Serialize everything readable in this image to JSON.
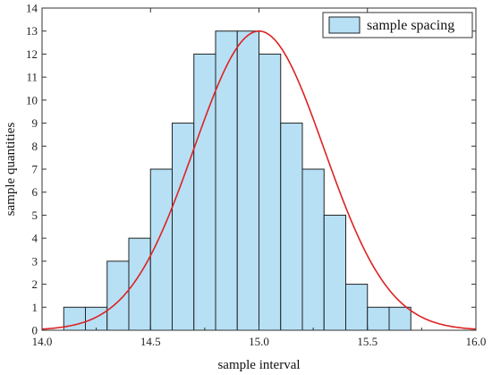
{
  "chart_data": {
    "type": "bar",
    "title": "",
    "xlabel": "sample interval",
    "ylabel": "sample quantities",
    "xlim": [
      14.0,
      16.0
    ],
    "ylim": [
      0,
      14
    ],
    "x_ticks": [
      "14.0",
      "14.5",
      "15.0",
      "15.5",
      "16.0"
    ],
    "y_ticks": [
      "0",
      "1",
      "2",
      "3",
      "4",
      "5",
      "6",
      "7",
      "8",
      "9",
      "10",
      "11",
      "12",
      "13",
      "14"
    ],
    "bin_width": 0.1,
    "bin_starts": [
      14.1,
      14.2,
      14.3,
      14.4,
      14.5,
      14.6,
      14.7,
      14.8,
      14.9,
      15.0,
      15.1,
      15.2,
      15.3,
      15.4,
      15.5,
      15.6,
      15.7,
      15.8
    ],
    "values": [
      1,
      1,
      3,
      4,
      7,
      9,
      12,
      13,
      13,
      12,
      9,
      7,
      5,
      2,
      1,
      1,
      0,
      0
    ],
    "series": [
      {
        "name": "sample spacing",
        "kind": "histogram"
      }
    ],
    "fit_curve": {
      "kind": "normal",
      "mean": 15.0,
      "sd": 0.3,
      "peak": 13
    },
    "legend_placement": "top-right",
    "grid": false,
    "colors": {
      "bar_fill": "#b7e0f5",
      "bar_edge": "#222222",
      "curve": "#dd2222",
      "frame": "#333333"
    }
  }
}
